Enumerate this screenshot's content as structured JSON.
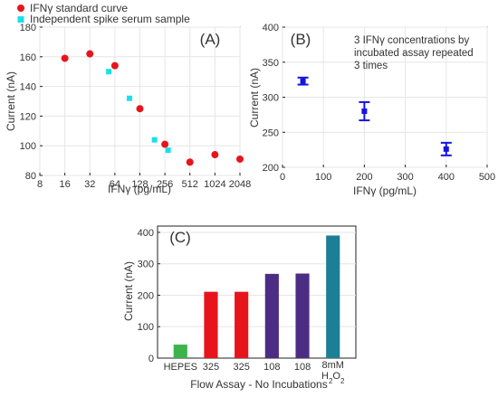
{
  "chart_data": [
    {
      "panel_label": "(A)",
      "type": "scatter",
      "xlabel": "IFNγ (pg/mL)",
      "ylabel": "Current (nA)",
      "x_scale": "log2",
      "xlim": [
        8,
        2048
      ],
      "ylim": [
        80,
        180
      ],
      "xticks": [
        8,
        16,
        32,
        64,
        128,
        256,
        512,
        1024,
        2048
      ],
      "xtick_labels": [
        "8",
        "16",
        "32",
        "64",
        "128",
        "256",
        "512",
        "1024",
        "2048"
      ],
      "yticks": [
        80,
        100,
        120,
        140,
        160,
        180
      ],
      "legend_position": "top-left",
      "series": [
        {
          "name": "IFNγ standard curve",
          "color": "#e8141b",
          "marker": "circle",
          "points": [
            [
              16,
              159
            ],
            [
              32,
              162
            ],
            [
              64,
              154
            ],
            [
              128,
              125
            ],
            [
              256,
              101
            ],
            [
              512,
              89
            ],
            [
              1024,
              94
            ],
            [
              2048,
              91
            ]
          ]
        },
        {
          "name": "Independent spike serum sample",
          "color": "#19e0ec",
          "marker": "square",
          "points": [
            [
              54,
              150
            ],
            [
              96,
              132
            ],
            [
              192,
              104
            ],
            [
              280,
              97
            ]
          ]
        }
      ]
    },
    {
      "panel_label": "(B)",
      "type": "scatter",
      "xlabel": "IFNγ (pg/mL)",
      "ylabel": "Current (nA)",
      "xlim": [
        0,
        500
      ],
      "ylim": [
        200,
        400
      ],
      "xticks": [
        0,
        100,
        200,
        300,
        400,
        500
      ],
      "yticks": [
        200,
        250,
        300,
        350,
        400
      ],
      "annotation": [
        "3 IFNγ concentrations by",
        "incubated assay repeated",
        "3 times"
      ],
      "series": [
        {
          "color": "#1414e0",
          "marker": "square",
          "error_bars": true,
          "points": [
            {
              "x": 50,
              "y": 323,
              "err": 5
            },
            {
              "x": 200,
              "y": 280,
              "err": 13
            },
            {
              "x": 400,
              "y": 226,
              "err": 9
            }
          ]
        }
      ]
    },
    {
      "panel_label": "(C)",
      "type": "bar",
      "xlabel": "Flow Assay - No Incubations",
      "ylabel": "Current (nA)",
      "ylim": [
        0,
        420
      ],
      "yticks": [
        0,
        100,
        200,
        300,
        400
      ],
      "categories": [
        "HEPES",
        "325",
        "325",
        "108",
        "108",
        "8mM H2O2"
      ],
      "values": [
        43,
        211,
        211,
        268,
        269,
        390
      ],
      "colors": [
        "#3cb44b",
        "#e8141b",
        "#e8141b",
        "#4b2e83",
        "#4b2e83",
        "#1c7f95"
      ]
    }
  ]
}
